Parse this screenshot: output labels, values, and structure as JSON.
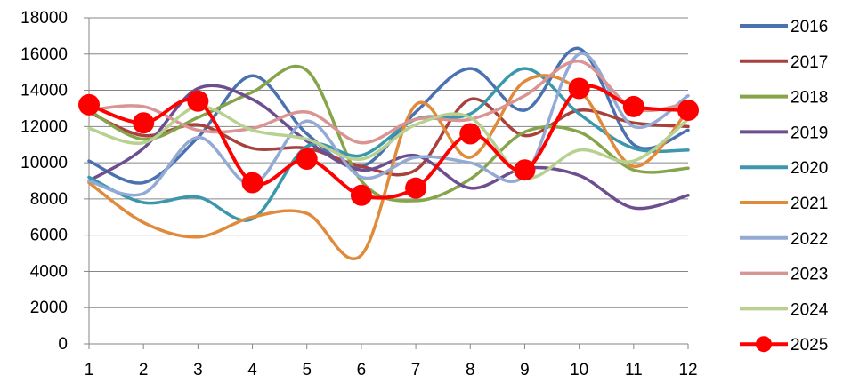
{
  "chart_data": {
    "type": "line",
    "title": "",
    "xlabel": "",
    "ylabel": "",
    "categories": [
      "1",
      "2",
      "3",
      "4",
      "5",
      "6",
      "7",
      "8",
      "9",
      "10",
      "11",
      "12"
    ],
    "ylim": [
      0,
      18000
    ],
    "yticks": [
      0,
      2000,
      4000,
      6000,
      8000,
      10000,
      12000,
      14000,
      16000,
      18000
    ],
    "ytick_labels": [
      "0",
      "2000",
      "4000",
      "6000",
      "8000",
      "10000",
      "12000",
      "14000",
      "16000",
      "18000"
    ],
    "grid": "horizontal",
    "smooth": true,
    "legend_position": "right",
    "series": [
      {
        "name": "2016",
        "color": "#4a72b0",
        "markers": false,
        "values": [
          10100,
          8900,
          11400,
          14800,
          11600,
          9800,
          12800,
          15200,
          12900,
          16300,
          11000,
          11800
        ]
      },
      {
        "name": "2017",
        "color": "#a8403c",
        "markers": false,
        "values": [
          12800,
          11500,
          12100,
          10800,
          10800,
          9800,
          9600,
          13500,
          11500,
          12900,
          12200,
          12000
        ]
      },
      {
        "name": "2018",
        "color": "#86a44a",
        "markers": false,
        "values": [
          12900,
          11300,
          12500,
          13900,
          15100,
          9000,
          7900,
          9100,
          11700,
          11700,
          9600,
          9700
        ]
      },
      {
        "name": "2019",
        "color": "#6d4e8f",
        "markers": false,
        "values": [
          9000,
          10800,
          14100,
          13500,
          11200,
          9600,
          10400,
          8600,
          9700,
          9300,
          7500,
          8200
        ]
      },
      {
        "name": "2020",
        "color": "#3b97ab",
        "markers": false,
        "values": [
          9200,
          7800,
          8100,
          6900,
          10900,
          10400,
          12400,
          12700,
          15200,
          12700,
          10800,
          10700
        ]
      },
      {
        "name": "2021",
        "color": "#e08a3c",
        "markers": false,
        "values": [
          8900,
          6700,
          5900,
          7000,
          7200,
          4900,
          13200,
          10300,
          14500,
          14000,
          9800,
          12900
        ]
      },
      {
        "name": "2022",
        "color": "#93aad4",
        "markers": false,
        "values": [
          9000,
          8300,
          11400,
          8800,
          12300,
          9200,
          10300,
          10000,
          9300,
          16000,
          12000,
          13700
        ]
      },
      {
        "name": "2023",
        "color": "#d89593",
        "markers": false,
        "values": [
          12900,
          13100,
          11800,
          11900,
          12800,
          11100,
          12400,
          12400,
          13700,
          15600,
          13000,
          13300
        ]
      },
      {
        "name": "2024",
        "color": "#b8d192",
        "markers": false,
        "values": [
          11900,
          11100,
          13100,
          11800,
          11300,
          10200,
          12100,
          12500,
          9200,
          10700,
          10100,
          12400
        ]
      },
      {
        "name": "2025",
        "color": "#ff0000",
        "markers": true,
        "values": [
          13200,
          12200,
          13400,
          8900,
          10200,
          8200,
          8600,
          11600,
          9600,
          14100,
          13100,
          12900
        ]
      }
    ]
  }
}
